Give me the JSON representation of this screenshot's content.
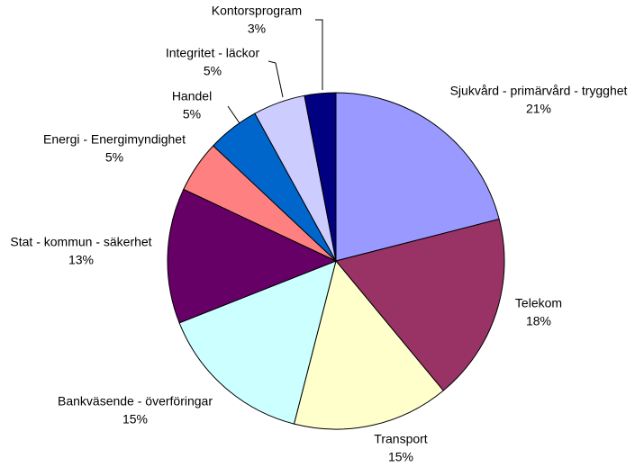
{
  "chart_data": {
    "type": "pie",
    "categories": [
      "Sjukvård - primärvård - trygghet",
      "Telekom",
      "Transport",
      "Bankväsende - överföringar",
      "Stat - kommun - säkerhet",
      "Energi - Energimyndighet",
      "Handel",
      "Integritet - läckor",
      "Kontorsprogram"
    ],
    "values": [
      21,
      18,
      15,
      15,
      13,
      5,
      5,
      5,
      3
    ],
    "value_labels": [
      "21%",
      "18%",
      "15%",
      "15%",
      "13%",
      "5%",
      "5%",
      "5%",
      "3%"
    ],
    "colors": [
      "#9999ff",
      "#993366",
      "#ffffcc",
      "#ccffff",
      "#660066",
      "#ff8080",
      "#0066cc",
      "#ccccff",
      "#000080"
    ]
  }
}
